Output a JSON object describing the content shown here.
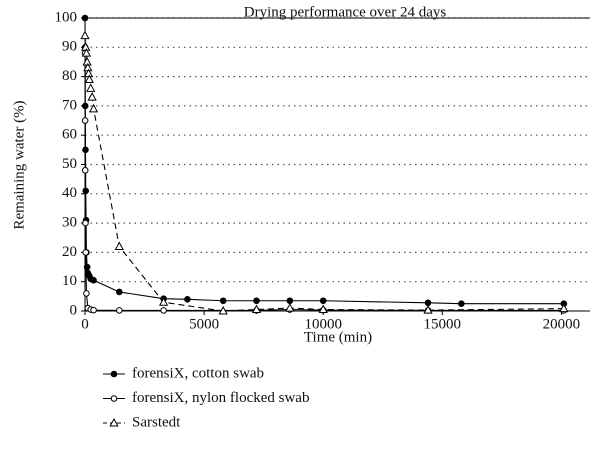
{
  "chart_data": {
    "type": "line",
    "title": "Drying performance over 24 days",
    "x_label": "Time (min)",
    "y_label": "Remaining water (%)",
    "xlim": [
      0,
      21200
    ],
    "xticks": [
      0,
      5000,
      10000,
      15000,
      20000
    ],
    "ylim": [
      0,
      100
    ],
    "yticks": [
      0,
      10,
      20,
      30,
      40,
      50,
      60,
      70,
      80,
      90,
      100
    ],
    "grid": true,
    "legend": "bottom",
    "series": [
      {
        "name": "forensiX, cotton swab",
        "color": "#000000",
        "marker": "filled-circle",
        "dashed": false,
        "x": [
          0,
          5,
          10,
          20,
          30,
          45,
          60,
          90,
          120,
          180,
          240,
          360,
          1440,
          3300,
          4300,
          5800,
          7200,
          8600,
          10000,
          14400,
          15800,
          20100
        ],
        "values": [
          100,
          90,
          70,
          55,
          41,
          31,
          20,
          15,
          13,
          12,
          11,
          10.5,
          6.5,
          4.2,
          4,
          3.5,
          3.5,
          3.5,
          3.5,
          2.8,
          2.5,
          2.5
        ]
      },
      {
        "name": "forensiX, nylon flocked swab",
        "color": "#000000",
        "marker": "open-circle",
        "dashed": false,
        "x": [
          0,
          5,
          10,
          20,
          30,
          60,
          120,
          240,
          360,
          1440,
          3300,
          7200,
          8600,
          10000,
          14400,
          20100
        ],
        "values": [
          88,
          65,
          48,
          30,
          20,
          6,
          1,
          0.5,
          0.3,
          0.2,
          0.2,
          0.2,
          0.5,
          0.3,
          0.2,
          0.2
        ]
      },
      {
        "name": "Sarstedt",
        "color": "#000000",
        "marker": "open-triangle",
        "dashed": true,
        "x": [
          0,
          30,
          60,
          90,
          120,
          150,
          180,
          240,
          300,
          360,
          1440,
          3300,
          5800,
          7200,
          8600,
          10000,
          14400,
          20100
        ],
        "values": [
          94,
          90,
          88,
          85,
          83,
          81,
          79,
          76,
          73,
          69,
          22,
          3,
          0,
          0.5,
          1,
          0.5,
          0.3,
          0.8
        ]
      }
    ]
  }
}
